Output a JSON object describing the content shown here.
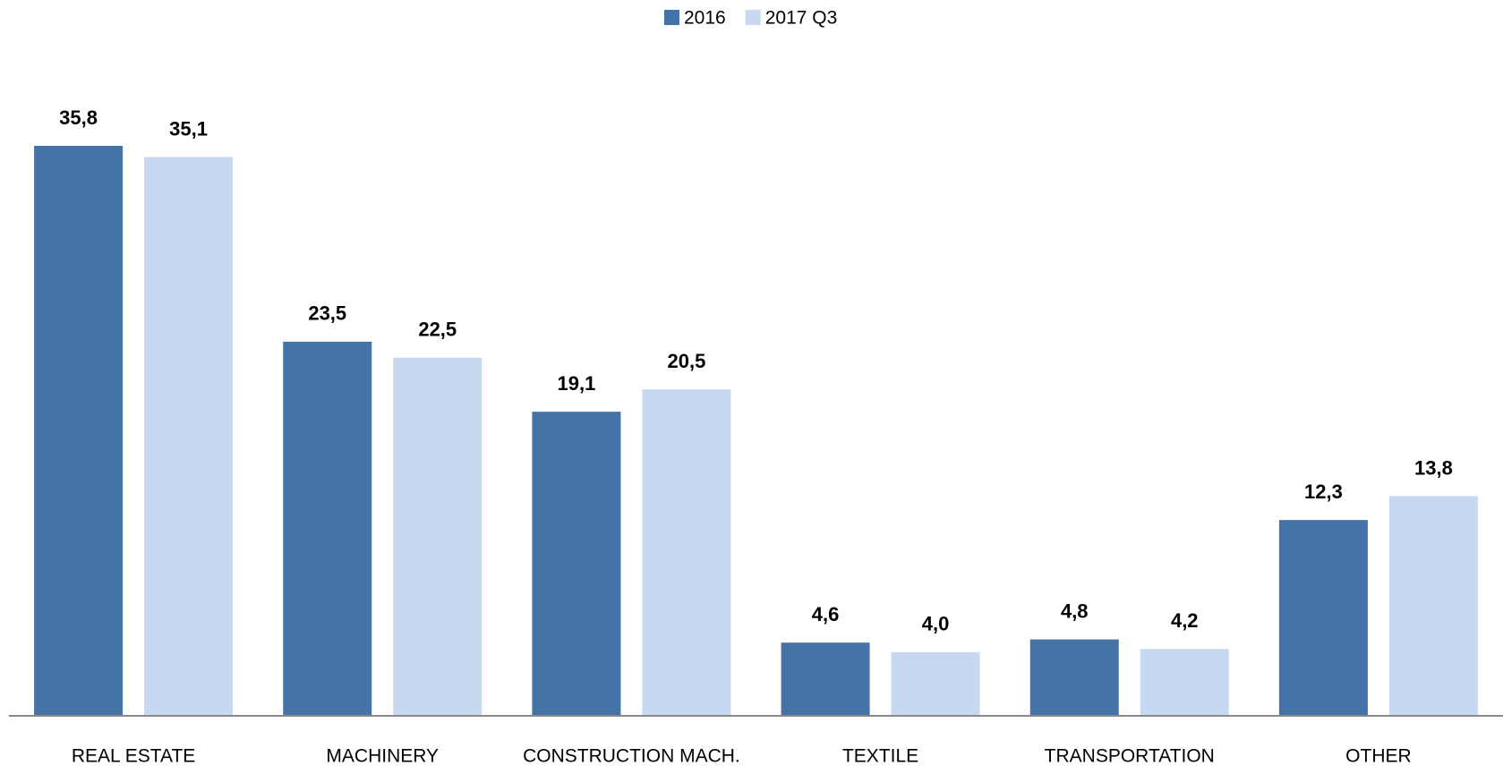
{
  "chart_data": {
    "type": "bar",
    "categories": [
      "REAL ESTATE",
      "MACHINERY",
      "CONSTRUCTION MACH.",
      "TEXTILE",
      "TRANSPORTATION",
      "OTHER"
    ],
    "series": [
      {
        "name": "2016",
        "color": "#4673a7",
        "values": [
          35.8,
          23.5,
          19.1,
          4.6,
          4.8,
          12.3
        ],
        "value_labels": [
          "35,8",
          "23,5",
          "19,1",
          "4,6",
          "4,8",
          "12,3"
        ]
      },
      {
        "name": "2017 Q3",
        "color": "#c6d9f1",
        "values": [
          35.1,
          22.5,
          20.5,
          4.0,
          4.2,
          13.8
        ],
        "value_labels": [
          "35,1",
          "22,5",
          "20,5",
          "4,0",
          "4,2",
          "13,8"
        ]
      }
    ],
    "legend": "top"
  }
}
